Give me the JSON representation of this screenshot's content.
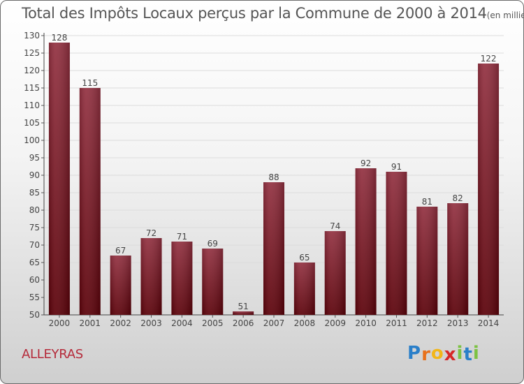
{
  "chart_data": {
    "type": "bar",
    "title": "Total des Impôts Locaux perçus par la Commune de 2000 à 2014",
    "unit_note": "(en milliers d'€)",
    "categories": [
      "2000",
      "2001",
      "2002",
      "2003",
      "2004",
      "2005",
      "2006",
      "2007",
      "2008",
      "2009",
      "2010",
      "2011",
      "2012",
      "2013",
      "2014"
    ],
    "values": [
      128,
      115,
      67,
      72,
      71,
      69,
      51,
      88,
      65,
      74,
      92,
      91,
      81,
      82,
      122
    ],
    "ylim": [
      50,
      130
    ],
    "yticks": [
      50,
      55,
      60,
      65,
      70,
      75,
      80,
      85,
      90,
      95,
      100,
      105,
      110,
      115,
      120,
      125,
      130
    ],
    "xlabel": "",
    "ylabel": "",
    "bar_color": "#7a1a20",
    "grid": true
  },
  "commune": "ALLEYRAS",
  "logo": {
    "letters": [
      "P",
      "r",
      "o",
      "x",
      "i",
      "t",
      "i"
    ],
    "colors": [
      "#2a7fc9",
      "#e8711c",
      "#f2b619",
      "#d62828",
      "#7cc243",
      "#2a7fc9",
      "#7cc243"
    ]
  }
}
